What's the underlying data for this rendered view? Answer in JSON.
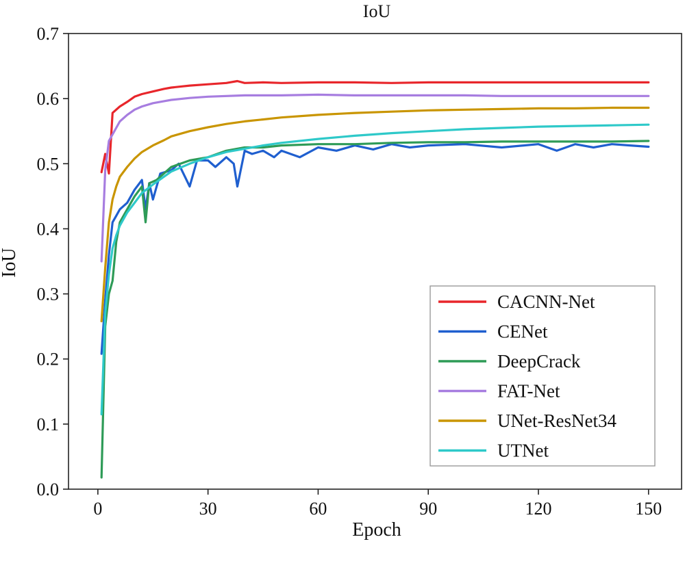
{
  "chart_data": {
    "type": "line",
    "title": "IoU",
    "xlabel": "Epoch",
    "ylabel": "IoU",
    "xlim": [
      -8,
      159
    ],
    "ylim": [
      0.0,
      0.7
    ],
    "xticks": [
      0,
      30,
      60,
      90,
      120,
      150
    ],
    "xtick_labels": [
      "0",
      "30",
      "60",
      "90",
      "120",
      "150"
    ],
    "yticks": [
      0.0,
      0.1,
      0.2,
      0.3,
      0.4,
      0.5,
      0.6,
      0.7
    ],
    "ytick_labels": [
      "0.0",
      "0.1",
      "0.2",
      "0.3",
      "0.4",
      "0.5",
      "0.6",
      "0.7"
    ],
    "grid": false,
    "legend_position": "lower-right",
    "series": [
      {
        "name": "CACNN-Net",
        "color": "#e8262b",
        "x": [
          1,
          2,
          3,
          4,
          6,
          8,
          10,
          12,
          15,
          18,
          20,
          25,
          30,
          35,
          38,
          40,
          45,
          50,
          60,
          70,
          80,
          90,
          100,
          110,
          120,
          130,
          140,
          150
        ],
        "y": [
          0.487,
          0.515,
          0.485,
          0.578,
          0.588,
          0.595,
          0.603,
          0.607,
          0.611,
          0.615,
          0.617,
          0.62,
          0.622,
          0.624,
          0.627,
          0.624,
          0.625,
          0.624,
          0.625,
          0.625,
          0.624,
          0.625,
          0.625,
          0.625,
          0.625,
          0.625,
          0.625,
          0.625
        ]
      },
      {
        "name": "CENet",
        "color": "#1f5fcf",
        "x": [
          1,
          2,
          3,
          4,
          5,
          6,
          8,
          10,
          12,
          13,
          14,
          15,
          17,
          20,
          22,
          25,
          27,
          30,
          32,
          35,
          37,
          38,
          40,
          42,
          45,
          48,
          50,
          55,
          60,
          65,
          70,
          75,
          80,
          85,
          90,
          100,
          110,
          120,
          125,
          130,
          135,
          140,
          145,
          150
        ],
        "y": [
          0.208,
          0.29,
          0.36,
          0.41,
          0.42,
          0.43,
          0.44,
          0.46,
          0.475,
          0.43,
          0.47,
          0.445,
          0.485,
          0.49,
          0.5,
          0.465,
          0.505,
          0.505,
          0.495,
          0.51,
          0.5,
          0.465,
          0.52,
          0.515,
          0.52,
          0.51,
          0.52,
          0.51,
          0.525,
          0.52,
          0.528,
          0.522,
          0.53,
          0.525,
          0.528,
          0.53,
          0.525,
          0.53,
          0.52,
          0.53,
          0.525,
          0.53,
          0.528,
          0.526
        ]
      },
      {
        "name": "DeepCrack",
        "color": "#2e9b57",
        "x": [
          1,
          2,
          3,
          4,
          5,
          6,
          8,
          10,
          12,
          13,
          14,
          16,
          18,
          20,
          25,
          30,
          35,
          40,
          45,
          50,
          60,
          70,
          80,
          90,
          100,
          110,
          120,
          130,
          140,
          150
        ],
        "y": [
          0.018,
          0.25,
          0.3,
          0.32,
          0.38,
          0.41,
          0.43,
          0.45,
          0.465,
          0.41,
          0.47,
          0.475,
          0.485,
          0.495,
          0.505,
          0.51,
          0.52,
          0.525,
          0.525,
          0.528,
          0.53,
          0.53,
          0.532,
          0.533,
          0.533,
          0.534,
          0.534,
          0.534,
          0.534,
          0.535
        ]
      },
      {
        "name": "FAT-Net",
        "color": "#a77de0",
        "x": [
          1,
          2,
          3,
          4,
          6,
          8,
          10,
          12,
          15,
          18,
          20,
          25,
          30,
          40,
          50,
          60,
          70,
          80,
          90,
          100,
          110,
          120,
          130,
          140,
          150
        ],
        "y": [
          0.35,
          0.49,
          0.535,
          0.545,
          0.565,
          0.575,
          0.583,
          0.588,
          0.593,
          0.596,
          0.598,
          0.601,
          0.603,
          0.605,
          0.605,
          0.606,
          0.605,
          0.605,
          0.605,
          0.605,
          0.604,
          0.604,
          0.604,
          0.604,
          0.604
        ]
      },
      {
        "name": "UNet-ResNet34",
        "color": "#c99500",
        "x": [
          1,
          2,
          3,
          4,
          5,
          6,
          8,
          10,
          12,
          15,
          18,
          20,
          25,
          30,
          35,
          40,
          45,
          50,
          60,
          70,
          80,
          90,
          100,
          110,
          120,
          130,
          140,
          150
        ],
        "y": [
          0.258,
          0.34,
          0.41,
          0.445,
          0.465,
          0.48,
          0.495,
          0.508,
          0.518,
          0.528,
          0.536,
          0.542,
          0.55,
          0.556,
          0.561,
          0.565,
          0.568,
          0.571,
          0.575,
          0.578,
          0.58,
          0.582,
          0.583,
          0.584,
          0.585,
          0.585,
          0.586,
          0.586
        ]
      },
      {
        "name": "UTNet",
        "color": "#2ec9c9",
        "x": [
          1,
          2,
          3,
          4,
          5,
          6,
          8,
          10,
          12,
          15,
          18,
          20,
          25,
          30,
          35,
          40,
          45,
          50,
          60,
          70,
          80,
          90,
          100,
          110,
          120,
          130,
          140,
          150
        ],
        "y": [
          0.115,
          0.27,
          0.33,
          0.37,
          0.39,
          0.405,
          0.425,
          0.44,
          0.455,
          0.468,
          0.48,
          0.488,
          0.5,
          0.51,
          0.518,
          0.523,
          0.528,
          0.532,
          0.538,
          0.543,
          0.547,
          0.55,
          0.553,
          0.555,
          0.557,
          0.558,
          0.559,
          0.56
        ]
      }
    ]
  }
}
